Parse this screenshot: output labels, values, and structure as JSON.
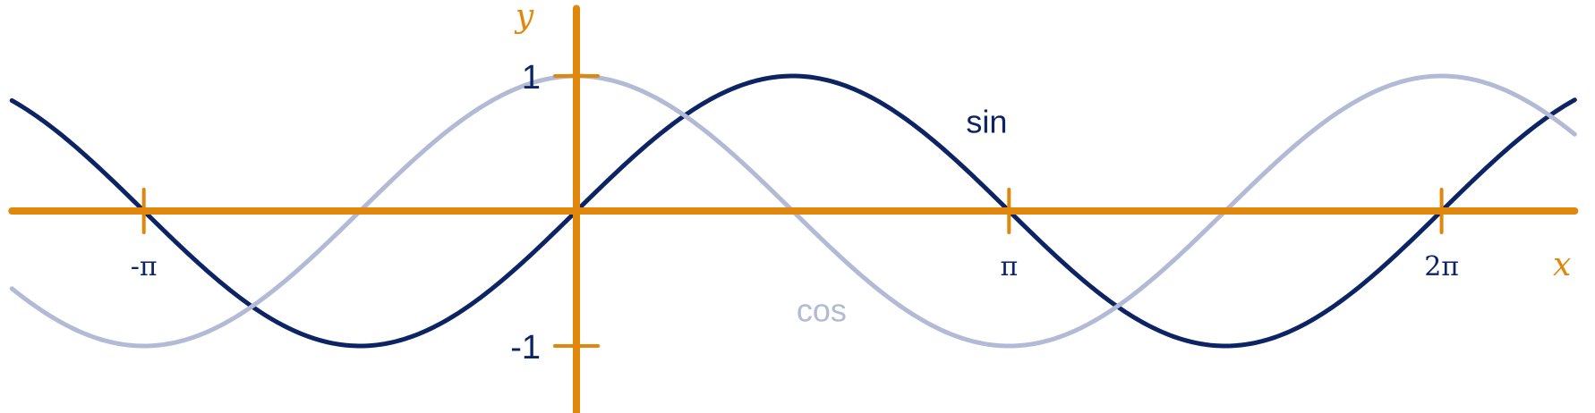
{
  "chart_data": {
    "type": "line",
    "title": "",
    "xlabel": "x",
    "ylabel": "y",
    "xlim": [
      -4.1,
      7.25
    ],
    "ylim": [
      -1.5,
      1.5
    ],
    "grid": false,
    "x_ticks": [
      {
        "value": -3.14159,
        "label": "-π"
      },
      {
        "value": 3.14159,
        "label": "π"
      },
      {
        "value": 6.28319,
        "label": "2π"
      }
    ],
    "y_ticks": [
      {
        "value": 1,
        "label": "1"
      },
      {
        "value": -1,
        "label": "-1"
      }
    ],
    "series": [
      {
        "name": "sin",
        "function": "sin",
        "x_range": [
          -4.1,
          7.25
        ],
        "color": "#0d2464",
        "label_position": {
          "x": 2.98,
          "y": 0.66
        }
      },
      {
        "name": "cos",
        "function": "cos",
        "x_range": [
          -4.1,
          7.25
        ],
        "color": "#b3bad6",
        "label_position": {
          "x": 1.78,
          "y": -0.74
        }
      }
    ],
    "colors": {
      "axes": "#e0870c",
      "x_label": "#e0870c",
      "y_label": "#e0870c",
      "tick_labels": "#0d2464"
    }
  }
}
